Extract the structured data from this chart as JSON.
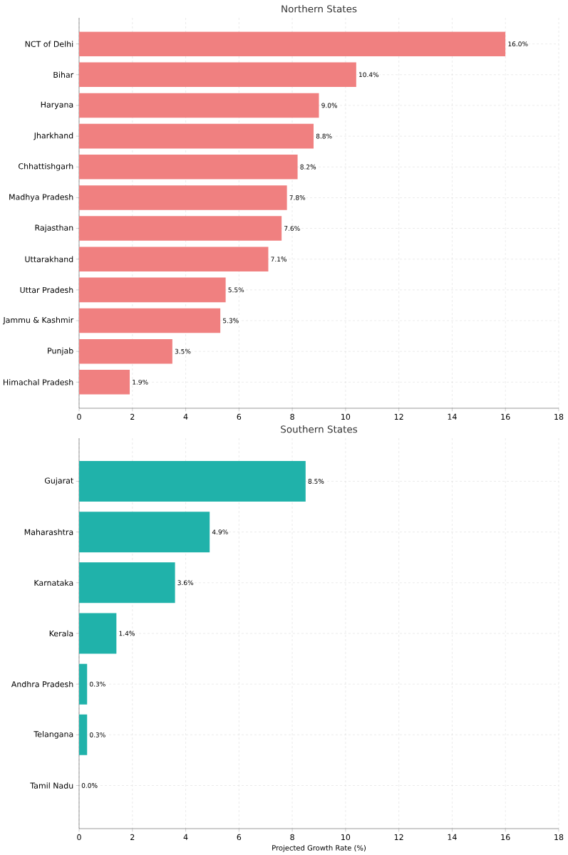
{
  "chart_data": [
    {
      "type": "bar",
      "orientation": "horizontal",
      "title": "Northern States",
      "categories": [
        "NCT of Delhi",
        "Bihar",
        "Haryana",
        "Jharkhand",
        "Chhattishgarh",
        "Madhya Pradesh",
        "Rajasthan",
        "Uttarakhand",
        "Uttar Pradesh",
        "Jammu & Kashmir",
        "Punjab",
        "Himachal Pradesh"
      ],
      "values": [
        16.0,
        10.4,
        9.0,
        8.8,
        8.2,
        7.8,
        7.6,
        7.1,
        5.5,
        5.3,
        3.5,
        1.9
      ],
      "value_labels": [
        "16.0%",
        "10.4%",
        "9.0%",
        "8.8%",
        "8.2%",
        "7.8%",
        "7.6%",
        "7.1%",
        "5.5%",
        "5.3%",
        "3.5%",
        "1.9%"
      ],
      "color": "#f08080",
      "xlim": [
        0,
        18
      ],
      "xticks": [
        0,
        2,
        4,
        6,
        8,
        10,
        12,
        14,
        16,
        18
      ],
      "grid": true
    },
    {
      "type": "bar",
      "orientation": "horizontal",
      "title": "Southern States",
      "xlabel": "Projected Growth Rate (%)",
      "categories": [
        "Gujarat",
        "Maharashtra",
        "Karnataka",
        "Kerala",
        "Andhra Pradesh",
        "Telangana",
        "Tamil Nadu"
      ],
      "values": [
        8.5,
        4.9,
        3.6,
        1.4,
        0.3,
        0.3,
        0.0
      ],
      "value_labels": [
        "8.5%",
        "4.9%",
        "3.6%",
        "1.4%",
        "0.3%",
        "0.3%",
        "0.0%"
      ],
      "color": "#20b2aa",
      "xlim": [
        0,
        18
      ],
      "xticks": [
        0,
        2,
        4,
        6,
        8,
        10,
        12,
        14,
        16,
        18
      ],
      "grid": true
    }
  ]
}
